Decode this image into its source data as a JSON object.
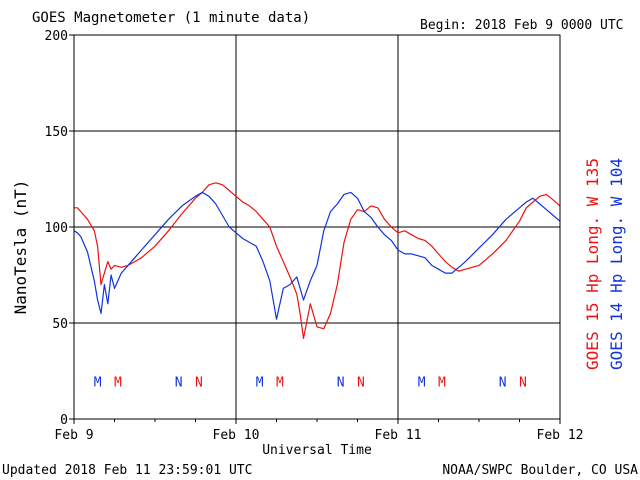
{
  "header": {
    "title": "GOES Magnetometer (1 minute data)",
    "begin": "Begin:  2018 Feb 9 0000 UTC"
  },
  "footer": {
    "updated": "Updated 2018 Feb 11 23:59:01 UTC",
    "source": "NOAA/SWPC Boulder, CO USA"
  },
  "colors": {
    "goes15": "#ee1111",
    "goes14": "#1133dd",
    "axis": "#000000",
    "background": "#ffffff"
  },
  "chart_data": {
    "type": "line",
    "xlabel": "Universal Time",
    "ylabel": "NanoTesla (nT)",
    "xlim": [
      0,
      72
    ],
    "ylim": [
      0,
      200
    ],
    "x_unit": "hours since 2018 Feb 9 0000 UTC",
    "y_ticks": [
      0,
      50,
      100,
      150,
      200
    ],
    "x_ticks": [
      {
        "x": 0,
        "label": "Feb 9"
      },
      {
        "x": 24,
        "label": "Feb 10"
      },
      {
        "x": 48,
        "label": "Feb 11"
      },
      {
        "x": 72,
        "label": "Feb 12"
      }
    ],
    "grid": true,
    "legend_right": [
      {
        "label": "GOES 15 Hp  Long. W 135",
        "color": "#ee1111"
      },
      {
        "label": "GOES 14 Hp  Long. W 104",
        "color": "#1133dd"
      }
    ],
    "series": [
      {
        "name": "GOES 15 Hp",
        "color": "#ee1111",
        "x": [
          0,
          0.5,
          1,
          2,
          3,
          3.5,
          4,
          5,
          5.5,
          6,
          7,
          8,
          9,
          10,
          12,
          14,
          16,
          18,
          19,
          20,
          21,
          22,
          23,
          24,
          25,
          26,
          27,
          28,
          29,
          30,
          31,
          32,
          33,
          33.5,
          34,
          35,
          36,
          37,
          38,
          39,
          40,
          41,
          42,
          43,
          44,
          45,
          46,
          47,
          48,
          49,
          50,
          51,
          52,
          53,
          54,
          55,
          56,
          57,
          58,
          60,
          62,
          64,
          66,
          67,
          68,
          69,
          70,
          71,
          72
        ],
        "y": [
          110,
          110,
          108,
          104,
          98,
          90,
          70,
          82,
          78,
          80,
          79,
          80,
          82,
          84,
          90,
          98,
          107,
          115,
          118,
          122,
          123,
          122,
          119,
          116,
          113,
          111,
          108,
          104,
          100,
          90,
          82,
          74,
          65,
          55,
          42,
          60,
          48,
          47,
          55,
          70,
          92,
          104,
          109,
          108,
          111,
          110,
          104,
          100,
          97,
          98,
          96,
          94,
          93,
          90,
          86,
          82,
          79,
          77,
          78,
          80,
          86,
          93,
          103,
          110,
          113,
          116,
          117,
          114,
          111
        ]
      },
      {
        "name": "GOES 14 Hp",
        "color": "#1133dd",
        "x": [
          0,
          0.5,
          1,
          2,
          3,
          3.5,
          4,
          4.5,
          5,
          5.5,
          6,
          7,
          8,
          9,
          10,
          12,
          14,
          16,
          18,
          19,
          20,
          21,
          22,
          23,
          24,
          25,
          26,
          27,
          28,
          29,
          30,
          31,
          32,
          33,
          34,
          35,
          36,
          37,
          38,
          39,
          40,
          41,
          42,
          43,
          44,
          45,
          46,
          47,
          48,
          49,
          50,
          51,
          52,
          53,
          54,
          55,
          56,
          57,
          58,
          60,
          62,
          64,
          66,
          67,
          68,
          69,
          70,
          71,
          72
        ],
        "y": [
          98,
          97,
          95,
          87,
          72,
          62,
          55,
          70,
          60,
          75,
          68,
          76,
          80,
          84,
          88,
          96,
          104,
          111,
          116,
          118,
          116,
          112,
          106,
          100,
          97,
          94,
          92,
          90,
          82,
          72,
          52,
          68,
          70,
          74,
          62,
          72,
          80,
          98,
          108,
          112,
          117,
          118,
          115,
          108,
          105,
          100,
          96,
          93,
          88,
          86,
          86,
          85,
          84,
          80,
          78,
          76,
          76,
          79,
          82,
          89,
          96,
          104,
          110,
          113,
          115,
          112,
          109,
          106,
          103
        ]
      }
    ],
    "markers": [
      {
        "label": "M",
        "series": "GOES 14 Hp",
        "x": 3.5,
        "y": 17
      },
      {
        "label": "M",
        "series": "GOES 15 Hp",
        "x": 6.5,
        "y": 17
      },
      {
        "label": "N",
        "series": "GOES 14 Hp",
        "x": 15.5,
        "y": 17
      },
      {
        "label": "N",
        "series": "GOES 15 Hp",
        "x": 18.5,
        "y": 17
      },
      {
        "label": "M",
        "series": "GOES 14 Hp",
        "x": 27.5,
        "y": 17
      },
      {
        "label": "M",
        "series": "GOES 15 Hp",
        "x": 30.5,
        "y": 17
      },
      {
        "label": "N",
        "series": "GOES 14 Hp",
        "x": 39.5,
        "y": 17
      },
      {
        "label": "N",
        "series": "GOES 15 Hp",
        "x": 42.5,
        "y": 17
      },
      {
        "label": "M",
        "series": "GOES 14 Hp",
        "x": 51.5,
        "y": 17
      },
      {
        "label": "M",
        "series": "GOES 15 Hp",
        "x": 54.5,
        "y": 17
      },
      {
        "label": "N",
        "series": "GOES 14 Hp",
        "x": 63.5,
        "y": 17
      },
      {
        "label": "N",
        "series": "GOES 15 Hp",
        "x": 66.5,
        "y": 17
      }
    ]
  }
}
